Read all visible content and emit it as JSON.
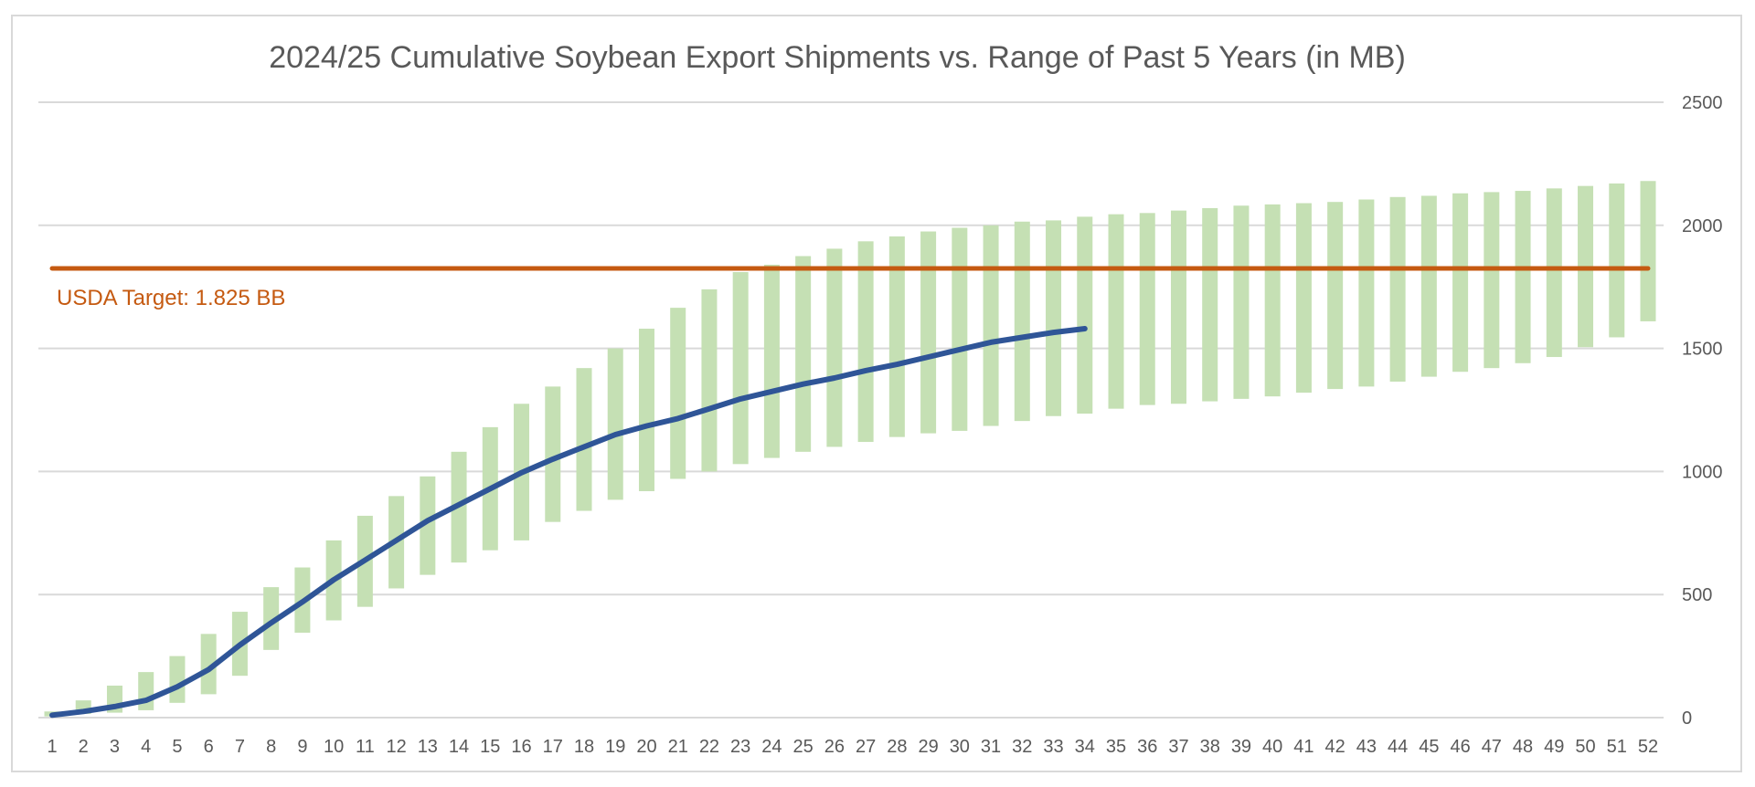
{
  "chart_data": {
    "type": "bar",
    "title": "2024/25 Cumulative Soybean Export Shipments vs. Range of Past 5 Years (in MB)",
    "xlabel": "",
    "ylabel": "",
    "ylim": [
      0,
      2500
    ],
    "yticks": [
      "0",
      "500",
      "1000",
      "1500",
      "2000",
      "2500"
    ],
    "y_axis_side": "right",
    "grid": true,
    "legend": "none",
    "categories": [
      "1",
      "2",
      "3",
      "4",
      "5",
      "6",
      "7",
      "8",
      "9",
      "10",
      "11",
      "12",
      "13",
      "14",
      "15",
      "16",
      "17",
      "18",
      "19",
      "20",
      "21",
      "22",
      "23",
      "24",
      "25",
      "26",
      "27",
      "28",
      "29",
      "30",
      "31",
      "32",
      "33",
      "34",
      "35",
      "36",
      "37",
      "38",
      "39",
      "40",
      "41",
      "42",
      "43",
      "44",
      "45",
      "46",
      "47",
      "48",
      "49",
      "50",
      "51",
      "52"
    ],
    "range_low": [
      5,
      15,
      20,
      30,
      60,
      95,
      170,
      275,
      345,
      395,
      450,
      525,
      580,
      630,
      680,
      720,
      795,
      840,
      885,
      920,
      970,
      1000,
      1030,
      1055,
      1080,
      1100,
      1120,
      1140,
      1155,
      1165,
      1185,
      1205,
      1225,
      1235,
      1255,
      1270,
      1275,
      1285,
      1295,
      1305,
      1320,
      1335,
      1345,
      1365,
      1385,
      1405,
      1420,
      1440,
      1465,
      1505,
      1545,
      1610
    ],
    "range_high": [
      25,
      70,
      130,
      185,
      250,
      340,
      430,
      530,
      610,
      720,
      820,
      900,
      980,
      1080,
      1180,
      1275,
      1345,
      1420,
      1500,
      1580,
      1665,
      1740,
      1810,
      1840,
      1875,
      1905,
      1935,
      1955,
      1975,
      1990,
      2000,
      2015,
      2020,
      2035,
      2045,
      2050,
      2060,
      2070,
      2080,
      2085,
      2090,
      2095,
      2105,
      2115,
      2120,
      2130,
      2135,
      2140,
      2150,
      2160,
      2170,
      2180
    ],
    "current": [
      10,
      25,
      45,
      70,
      125,
      195,
      295,
      385,
      470,
      560,
      640,
      720,
      800,
      865,
      930,
      995,
      1050,
      1100,
      1150,
      1185,
      1215,
      1255,
      1295,
      1325,
      1355,
      1380,
      1410,
      1435,
      1465,
      1495,
      1525,
      1545,
      1565,
      1580
    ],
    "current_color": "#2f5597",
    "range_color": "#c5e0b4",
    "target": 1825,
    "target_color": "#c55a11",
    "target_label": "USDA Target: 1.825 BB",
    "grid_color": "#d9d9d9"
  }
}
